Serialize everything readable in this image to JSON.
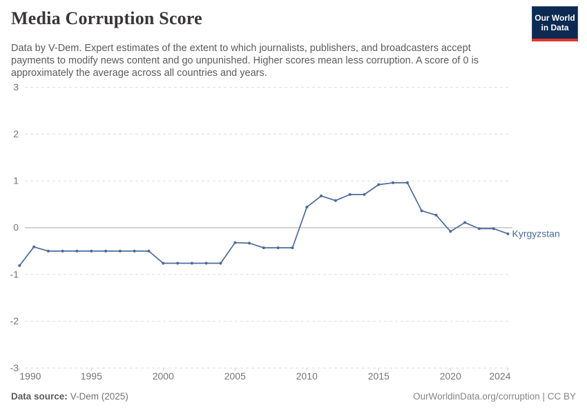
{
  "header": {
    "title": "Media Corruption Score",
    "subtitle_lines": [
      "Data by V-Dem. Expert estimates of the extent to which journalists, publishers, and broadcasters accept",
      "payments to modify news content and go unpunished. Higher scores mean less corruption. A score of 0 is",
      "approximately the average across all countries and years."
    ],
    "logo": {
      "line1": "Our World",
      "line2": "in Data"
    }
  },
  "chart_data": {
    "type": "line",
    "title": "Media Corruption Score",
    "x": [
      1990,
      1991,
      1992,
      1993,
      1994,
      1995,
      1996,
      1997,
      1998,
      1999,
      2000,
      2001,
      2002,
      2003,
      2004,
      2005,
      2006,
      2007,
      2008,
      2009,
      2010,
      2011,
      2012,
      2013,
      2014,
      2015,
      2016,
      2017,
      2018,
      2019,
      2020,
      2021,
      2022,
      2023,
      2024
    ],
    "series": [
      {
        "name": "Kyrgyzstan",
        "color": "#4C6A9C",
        "values": [
          -0.81,
          -0.41,
          -0.5,
          -0.5,
          -0.5,
          -0.5,
          -0.5,
          -0.5,
          -0.5,
          -0.5,
          -0.76,
          -0.76,
          -0.76,
          -0.76,
          -0.76,
          -0.32,
          -0.33,
          -0.43,
          -0.43,
          -0.43,
          0.44,
          0.68,
          0.58,
          0.71,
          0.71,
          0.92,
          0.96,
          0.96,
          0.36,
          0.27,
          -0.08,
          0.11,
          -0.02,
          -0.02,
          -0.13
        ]
      }
    ],
    "xlabel": "",
    "ylabel": "",
    "ylim": [
      -3,
      3
    ],
    "xlim": [
      1990,
      2024
    ],
    "yticks": [
      3,
      2,
      1,
      0,
      -1,
      -2,
      -3
    ],
    "xticks": [
      1990,
      1995,
      2000,
      2005,
      2010,
      2015,
      2020,
      2024
    ],
    "grid": true,
    "legend_position": "end-of-line",
    "colors": {
      "gridline": "#dcdcdc",
      "zero_line": "#a5a5a5",
      "tick_label": "#747474",
      "axis_tick": "#c8c8c8"
    }
  },
  "footer": {
    "data_source_label": "Data source:",
    "data_source_value": "V-Dem (2025)",
    "attribution": "OurWorldinData.org/corruption | CC BY"
  }
}
